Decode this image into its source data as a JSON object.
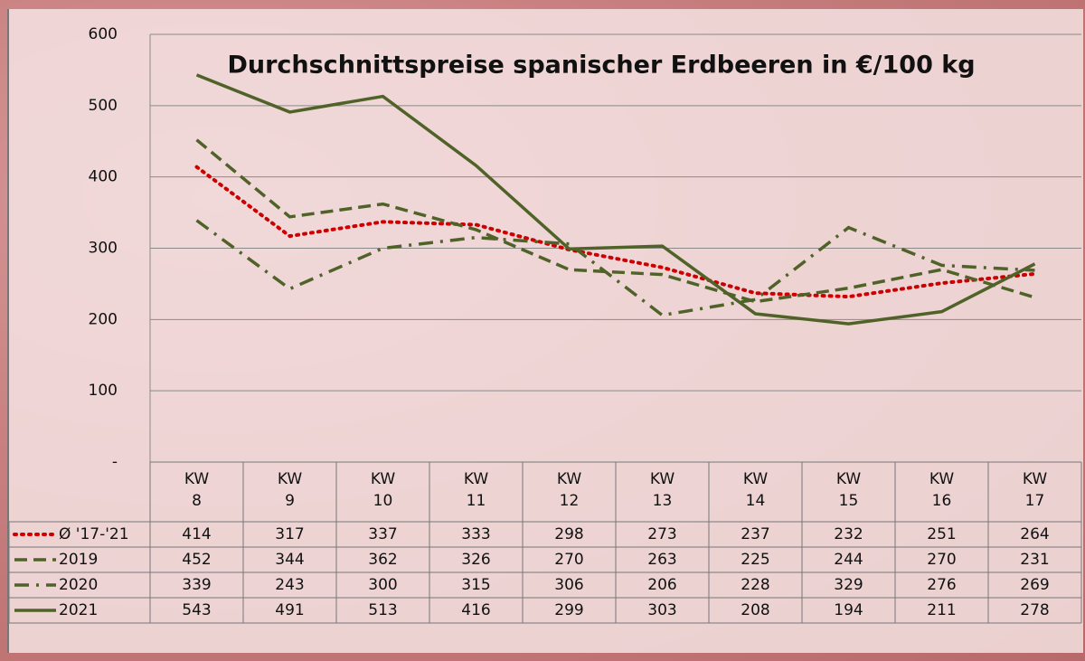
{
  "chart_data": {
    "type": "line",
    "title": "Durchschnittspreise spanischer Erdbeeren in €/100 kg",
    "categories": [
      "KW\n8",
      "KW\n9",
      "KW\n10",
      "KW\n11",
      "KW\n12",
      "KW\n13",
      "KW\n14",
      "KW\n15",
      "KW\n16",
      "KW\n17"
    ],
    "series": [
      {
        "name": "Ø '17-'21",
        "color": "#cc0000",
        "dash": "dotted",
        "values": [
          414,
          317,
          337,
          333,
          298,
          273,
          237,
          232,
          251,
          264
        ]
      },
      {
        "name": "2019",
        "color": "#4f6228",
        "dash": "dashed",
        "values": [
          452,
          344,
          362,
          326,
          270,
          263,
          225,
          244,
          270,
          231
        ]
      },
      {
        "name": "2020",
        "color": "#4f6228",
        "dash": "dashdot",
        "values": [
          339,
          243,
          300,
          315,
          306,
          206,
          228,
          329,
          276,
          269
        ]
      },
      {
        "name": "2021",
        "color": "#4f6228",
        "dash": "solid",
        "values": [
          543,
          491,
          513,
          416,
          299,
          303,
          208,
          194,
          211,
          278
        ]
      }
    ],
    "ylim": [
      0,
      600
    ],
    "yticks": [
      {
        "value": 0,
        "label": "-"
      },
      100,
      200,
      300,
      400,
      500,
      600
    ],
    "grid": true
  }
}
